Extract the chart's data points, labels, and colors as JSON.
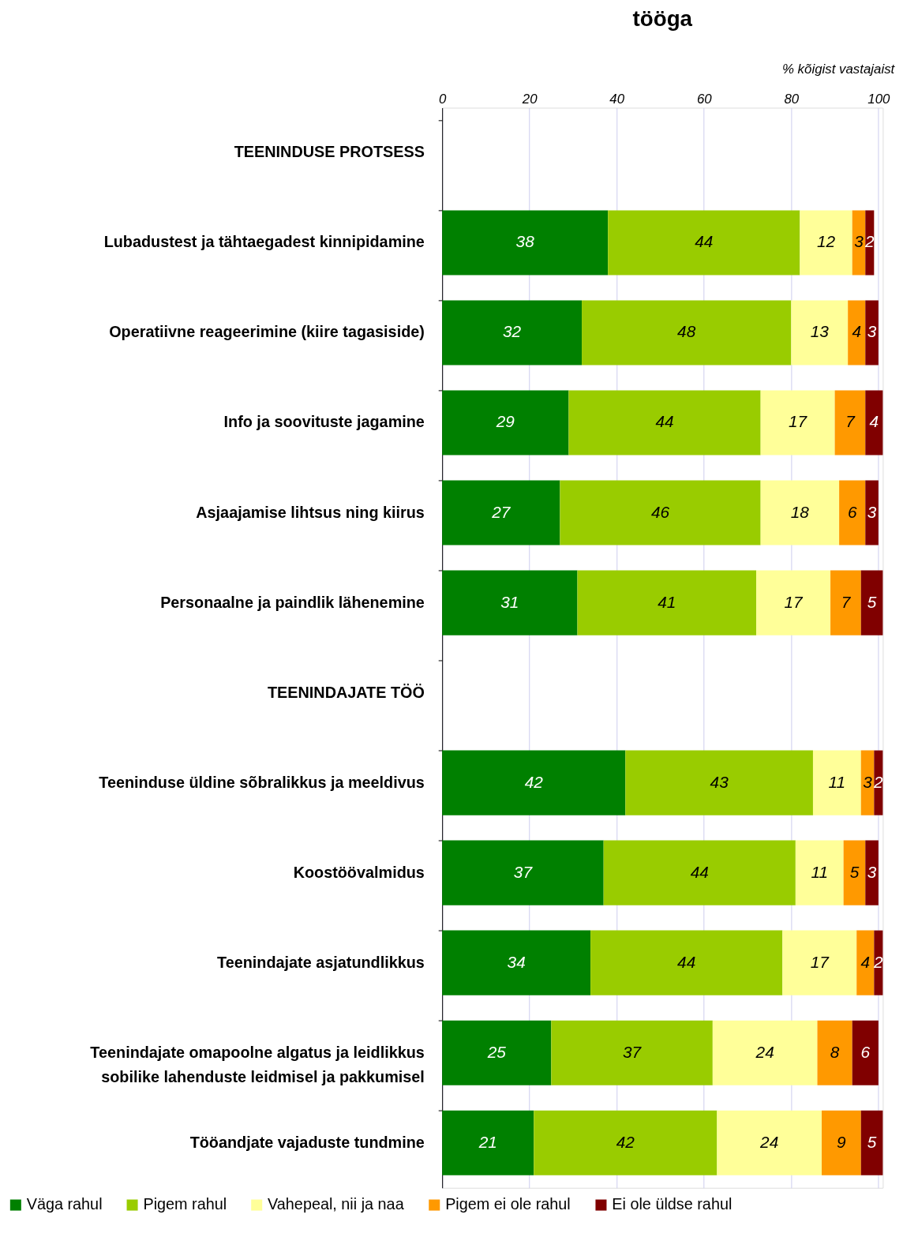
{
  "chart_data": {
    "type": "bar",
    "orientation": "horizontal",
    "stacked": true,
    "title": "tööga",
    "annotations": [
      "% kõigist vastajaist"
    ],
    "categories": [
      "TEENINDUSE PROTSESS",
      "Lubadustest ja tähtaegadest kinnipidamine",
      "Operatiivne reageerimine (kiire tagasiside)",
      "Info ja soovituste jagamine",
      "Asjaajamise lihtsus ning kiirus",
      "Personaalne ja paindlik lähenemine",
      "TEENINDAJATE TÖÖ",
      "Teeninduse üldine sõbralikkus ja meeldivus",
      "Koostöövalmidus",
      "Teenindajate asjatundlikkus",
      "Teenindajate omapoolne algatus ja leidlikkus sobilike lahenduste leidmisel ja pakkumisel",
      "Tööandjate vajaduste tundmine"
    ],
    "series": [
      {
        "name": "Väga rahul",
        "color": "#008000",
        "values": [
          null,
          38,
          32,
          29,
          27,
          31,
          null,
          42,
          37,
          34,
          25,
          21
        ]
      },
      {
        "name": "Pigem rahul",
        "color": "#99cc00",
        "values": [
          null,
          44,
          48,
          44,
          46,
          41,
          null,
          43,
          44,
          44,
          37,
          42
        ]
      },
      {
        "name": "Vahepeal, nii ja naa",
        "color": "#ffff99",
        "values": [
          null,
          12,
          13,
          17,
          18,
          17,
          null,
          11,
          11,
          17,
          24,
          24
        ]
      },
      {
        "name": "Pigem ei ole rahul",
        "color": "#ff9900",
        "values": [
          null,
          3,
          4,
          7,
          6,
          7,
          null,
          3,
          5,
          4,
          8,
          9
        ]
      },
      {
        "name": "Ei ole üldse rahul",
        "color": "#800000",
        "values": [
          null,
          2,
          3,
          4,
          3,
          5,
          null,
          2,
          3,
          2,
          6,
          5
        ]
      }
    ],
    "xlim": [
      0,
      101
    ],
    "xticks": [
      0,
      20,
      40,
      60,
      80,
      100
    ],
    "grid": "x",
    "legend": "bottom",
    "data_labels": true
  }
}
